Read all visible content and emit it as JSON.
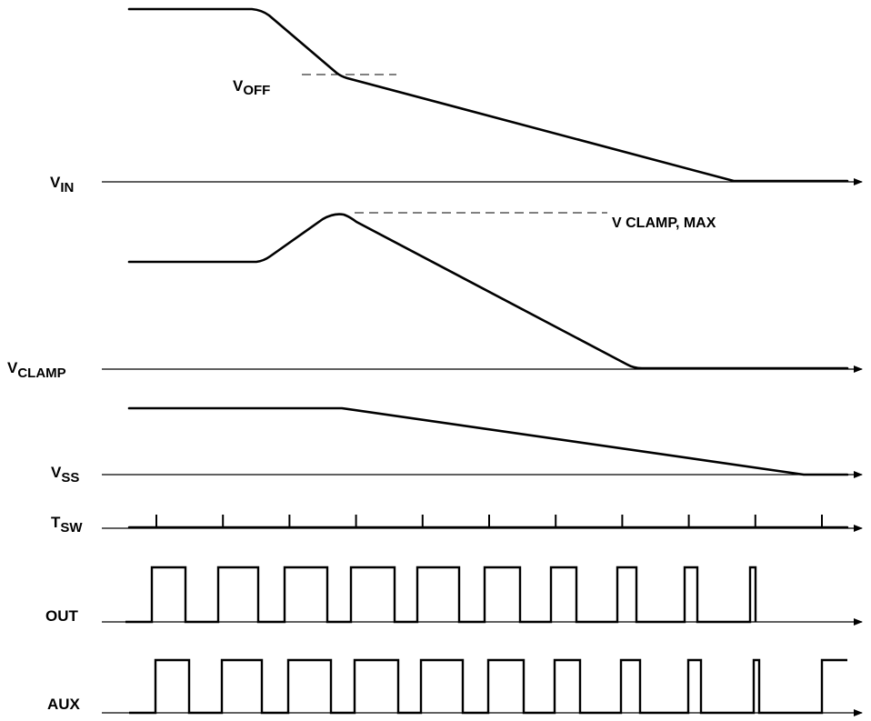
{
  "signals": {
    "vin": {
      "main": "V",
      "sub": "IN"
    },
    "vclamp": {
      "main": "V",
      "sub": "CLAMP"
    },
    "vss": {
      "main": "V",
      "sub": "SS"
    },
    "tsw": {
      "main": "T",
      "sub": "SW"
    },
    "out": {
      "label": "OUT"
    },
    "aux": {
      "label": "AUX"
    }
  },
  "annotations": {
    "voff": {
      "main": "V",
      "sub": "OFF"
    },
    "vclamp_max": "V CLAMP, MAX"
  },
  "tsw_tick_count": 11,
  "colors": {
    "line": "#000000",
    "background": "#ffffff"
  }
}
